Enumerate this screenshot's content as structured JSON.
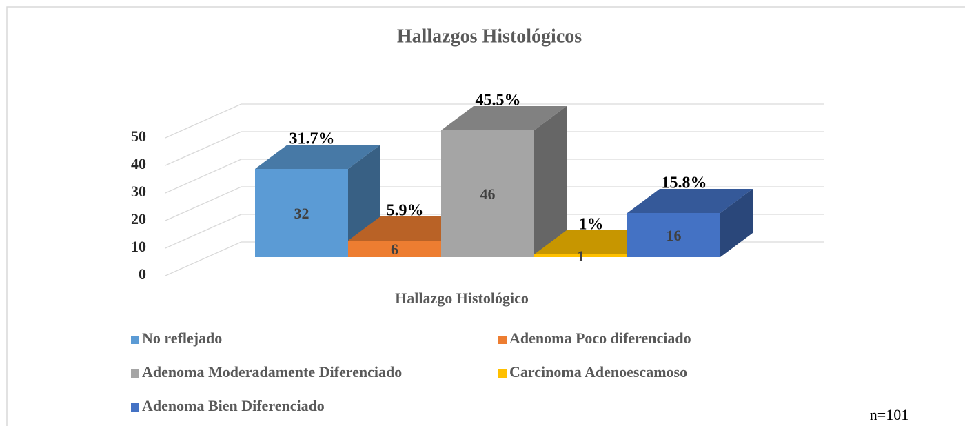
{
  "chart_data": {
    "type": "bar3d",
    "title": "Hallazgos Histológicos",
    "x_label": "Hallazgo Histológico",
    "ylim": [
      0,
      50
    ],
    "yticks": [
      0,
      10,
      20,
      30,
      40,
      50
    ],
    "grid": true,
    "series": [
      {
        "name": "No reflejado",
        "color": "#5b9bd5",
        "values": [
          32
        ],
        "percent_labels": [
          "31.7%"
        ]
      },
      {
        "name": "Adenoma Poco diferenciado",
        "color": "#ed7d31",
        "values": [
          6
        ],
        "percent_labels": [
          "5.9%"
        ]
      },
      {
        "name": "Adenoma Moderadamente Diferenciado",
        "color": "#a5a5a5",
        "values": [
          46
        ],
        "percent_labels": [
          "45.5%"
        ]
      },
      {
        "name": "Carcinoma Adenoescamoso",
        "color": "#ffc000",
        "values": [
          1
        ],
        "percent_labels": [
          "1%"
        ]
      },
      {
        "name": "Adenoma Bien Diferenciado",
        "color": "#4472c4",
        "values": [
          16
        ],
        "percent_labels": [
          "15.8%"
        ]
      }
    ],
    "legend": "bottom",
    "note": "n=101"
  }
}
